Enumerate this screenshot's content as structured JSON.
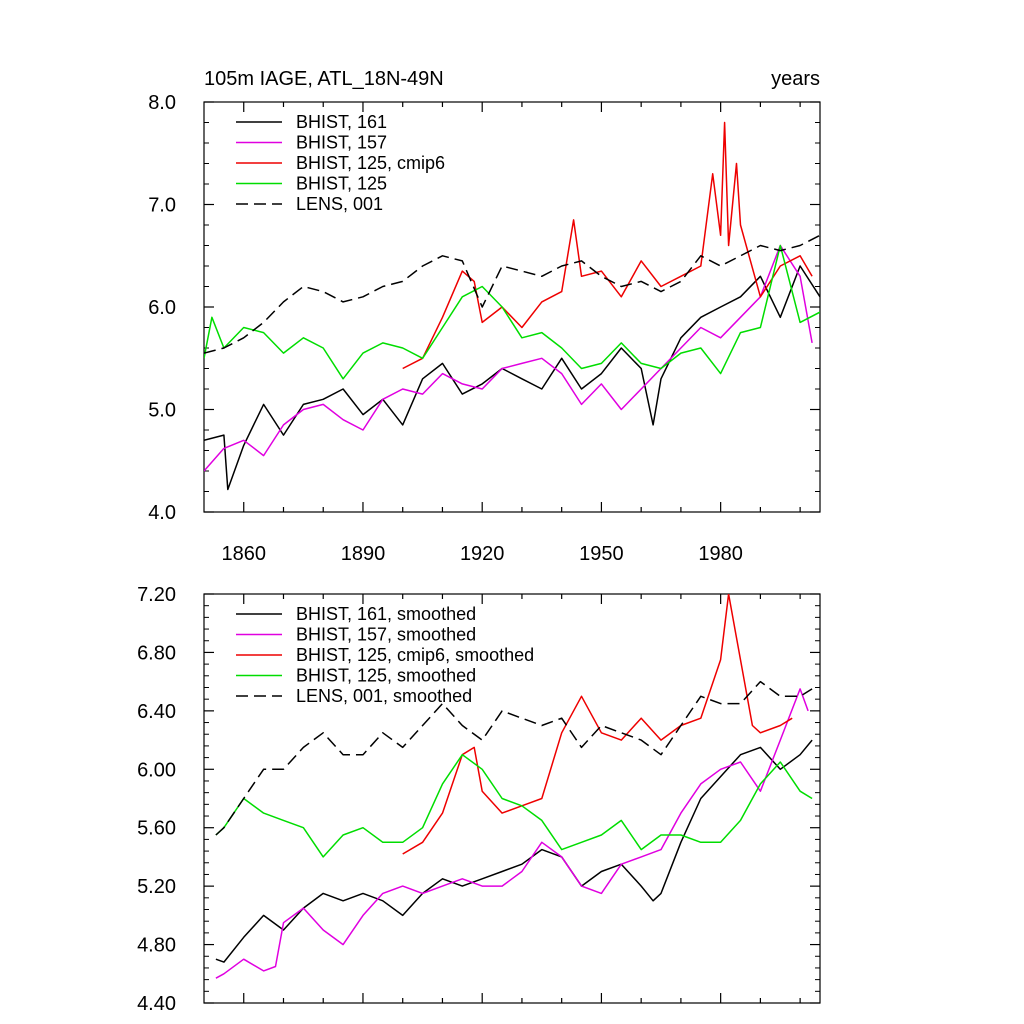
{
  "chart_data": [
    {
      "type": "line",
      "title": "105m IAGE, ATL_18N-49N",
      "units": "years",
      "xlim": [
        1850,
        2005
      ],
      "ylim": [
        4.0,
        8.0
      ],
      "yticks": [
        "4.0",
        "5.0",
        "6.0",
        "7.0",
        "8.0"
      ],
      "xticks": [
        "1860",
        "1890",
        "1920",
        "1950",
        "1980"
      ],
      "legend_position": "top-left",
      "series": [
        {
          "name": "BHIST, 161",
          "color": "#000000",
          "dash": "solid",
          "x": [
            1850,
            1855,
            1856,
            1860,
            1865,
            1870,
            1875,
            1880,
            1885,
            1890,
            1895,
            1900,
            1905,
            1910,
            1915,
            1920,
            1925,
            1930,
            1935,
            1940,
            1945,
            1950,
            1955,
            1960,
            1963,
            1965,
            1970,
            1975,
            1980,
            1985,
            1990,
            1995,
            2000,
            2005
          ],
          "y": [
            4.7,
            4.75,
            4.22,
            4.65,
            5.05,
            4.75,
            5.05,
            5.1,
            5.2,
            4.95,
            5.1,
            4.85,
            5.3,
            5.45,
            5.15,
            5.25,
            5.4,
            5.3,
            5.2,
            5.5,
            5.2,
            5.35,
            5.6,
            5.4,
            4.85,
            5.3,
            5.7,
            5.9,
            6.0,
            6.1,
            6.3,
            5.9,
            6.4,
            6.1
          ]
        },
        {
          "name": "BHIST, 157",
          "color": "#e000e0",
          "dash": "solid",
          "x": [
            1850,
            1855,
            1860,
            1865,
            1870,
            1875,
            1880,
            1885,
            1890,
            1895,
            1900,
            1905,
            1910,
            1915,
            1920,
            1925,
            1930,
            1935,
            1940,
            1945,
            1950,
            1955,
            1960,
            1965,
            1970,
            1975,
            1980,
            1985,
            1990,
            1995,
            2000,
            2003
          ],
          "y": [
            4.4,
            4.62,
            4.7,
            4.55,
            4.85,
            5.0,
            5.05,
            4.9,
            4.8,
            5.1,
            5.2,
            5.15,
            5.35,
            5.25,
            5.2,
            5.4,
            5.45,
            5.5,
            5.35,
            5.05,
            5.25,
            5.0,
            5.2,
            5.4,
            5.6,
            5.8,
            5.7,
            5.9,
            6.1,
            6.6,
            6.3,
            5.65
          ]
        },
        {
          "name": "BHIST, 125, cmip6",
          "color": "#ee0000",
          "dash": "solid",
          "x": [
            1900,
            1905,
            1910,
            1915,
            1918,
            1920,
            1925,
            1930,
            1935,
            1940,
            1943,
            1945,
            1950,
            1955,
            1960,
            1965,
            1970,
            1975,
            1978,
            1980,
            1981,
            1982,
            1984,
            1985,
            1990,
            1995,
            2000,
            2003
          ],
          "y": [
            5.4,
            5.5,
            5.9,
            6.35,
            6.25,
            5.85,
            6.0,
            5.8,
            6.05,
            6.15,
            6.85,
            6.3,
            6.35,
            6.1,
            6.45,
            6.2,
            6.3,
            6.4,
            7.3,
            6.7,
            7.8,
            6.6,
            7.4,
            6.8,
            6.1,
            6.4,
            6.5,
            6.3
          ]
        },
        {
          "name": "BHIST, 125",
          "color": "#00dd00",
          "dash": "solid",
          "x": [
            1850,
            1852,
            1855,
            1860,
            1865,
            1870,
            1875,
            1880,
            1885,
            1890,
            1895,
            1900,
            1905,
            1910,
            1915,
            1920,
            1925,
            1930,
            1935,
            1940,
            1945,
            1950,
            1955,
            1960,
            1965,
            1970,
            1975,
            1980,
            1985,
            1990,
            1995,
            2000,
            2005
          ],
          "y": [
            5.5,
            5.9,
            5.6,
            5.8,
            5.75,
            5.55,
            5.7,
            5.6,
            5.3,
            5.55,
            5.65,
            5.6,
            5.5,
            5.8,
            6.1,
            6.2,
            6.0,
            5.7,
            5.75,
            5.6,
            5.4,
            5.45,
            5.65,
            5.45,
            5.4,
            5.55,
            5.6,
            5.35,
            5.75,
            5.8,
            6.6,
            5.85,
            5.95
          ]
        },
        {
          "name": "LENS, 001",
          "color": "#000000",
          "dash": "dashed",
          "x": [
            1850,
            1855,
            1860,
            1865,
            1870,
            1875,
            1880,
            1885,
            1890,
            1895,
            1900,
            1905,
            1910,
            1915,
            1920,
            1925,
            1930,
            1935,
            1940,
            1945,
            1950,
            1955,
            1960,
            1965,
            1970,
            1975,
            1980,
            1985,
            1990,
            1995,
            2000,
            2005
          ],
          "y": [
            5.55,
            5.6,
            5.7,
            5.85,
            6.05,
            6.2,
            6.15,
            6.05,
            6.1,
            6.2,
            6.25,
            6.4,
            6.5,
            6.45,
            6.0,
            6.4,
            6.35,
            6.3,
            6.4,
            6.45,
            6.3,
            6.2,
            6.25,
            6.15,
            6.25,
            6.5,
            6.4,
            6.5,
            6.6,
            6.55,
            6.6,
            6.7
          ]
        }
      ]
    },
    {
      "type": "line",
      "title": "",
      "xlim": [
        1850,
        2005
      ],
      "ylim": [
        4.4,
        7.2
      ],
      "yticks": [
        "4.40",
        "4.80",
        "5.20",
        "5.60",
        "6.00",
        "6.40",
        "6.80",
        "7.20"
      ],
      "xticks": [],
      "legend_position": "top-left",
      "series": [
        {
          "name": "BHIST, 161, smoothed",
          "color": "#000000",
          "dash": "solid",
          "x": [
            1853,
            1855,
            1860,
            1865,
            1870,
            1875,
            1880,
            1885,
            1890,
            1895,
            1900,
            1905,
            1910,
            1915,
            1920,
            1925,
            1930,
            1935,
            1940,
            1945,
            1950,
            1955,
            1960,
            1963,
            1965,
            1970,
            1975,
            1980,
            1985,
            1990,
            1995,
            2000,
            2003
          ],
          "y": [
            4.7,
            4.68,
            4.85,
            5.0,
            4.9,
            5.05,
            5.15,
            5.1,
            5.15,
            5.1,
            5.0,
            5.15,
            5.25,
            5.2,
            5.25,
            5.3,
            5.35,
            5.45,
            5.4,
            5.2,
            5.3,
            5.35,
            5.2,
            5.1,
            5.15,
            5.5,
            5.8,
            5.95,
            6.1,
            6.15,
            6.0,
            6.1,
            6.2
          ]
        },
        {
          "name": "BHIST, 157, smoothed",
          "color": "#e000e0",
          "dash": "solid",
          "x": [
            1853,
            1855,
            1860,
            1865,
            1868,
            1870,
            1875,
            1880,
            1885,
            1890,
            1895,
            1900,
            1905,
            1910,
            1915,
            1920,
            1925,
            1930,
            1935,
            1940,
            1945,
            1950,
            1955,
            1960,
            1965,
            1970,
            1975,
            1980,
            1985,
            1990,
            1995,
            2000,
            2002
          ],
          "y": [
            4.57,
            4.6,
            4.7,
            4.62,
            4.65,
            4.95,
            5.05,
            4.9,
            4.8,
            5.0,
            5.15,
            5.2,
            5.15,
            5.2,
            5.25,
            5.2,
            5.2,
            5.3,
            5.5,
            5.4,
            5.2,
            5.15,
            5.35,
            5.4,
            5.45,
            5.7,
            5.9,
            6.0,
            6.05,
            5.85,
            6.2,
            6.55,
            6.4
          ]
        },
        {
          "name": "BHIST, 125, cmip6, smoothed",
          "color": "#ee0000",
          "dash": "solid",
          "x": [
            1900,
            1905,
            1910,
            1915,
            1918,
            1920,
            1925,
            1930,
            1935,
            1940,
            1945,
            1950,
            1955,
            1960,
            1965,
            1970,
            1975,
            1980,
            1982,
            1984,
            1988,
            1990,
            1995,
            1998
          ],
          "y": [
            5.42,
            5.5,
            5.7,
            6.1,
            6.15,
            5.85,
            5.7,
            5.75,
            5.8,
            6.25,
            6.5,
            6.25,
            6.2,
            6.35,
            6.2,
            6.3,
            6.35,
            6.75,
            7.2,
            6.9,
            6.3,
            6.25,
            6.3,
            6.35
          ]
        },
        {
          "name": "BHIST, 125, smoothed",
          "color": "#00dd00",
          "dash": "solid",
          "x": [
            1853,
            1855,
            1860,
            1865,
            1870,
            1875,
            1880,
            1885,
            1890,
            1895,
            1900,
            1905,
            1910,
            1915,
            1920,
            1925,
            1930,
            1935,
            1940,
            1945,
            1950,
            1955,
            1960,
            1965,
            1970,
            1975,
            1980,
            1985,
            1990,
            1995,
            2000,
            2003
          ],
          "y": [
            5.55,
            5.6,
            5.8,
            5.7,
            5.65,
            5.6,
            5.4,
            5.55,
            5.6,
            5.5,
            5.5,
            5.6,
            5.9,
            6.1,
            6.0,
            5.8,
            5.75,
            5.65,
            5.45,
            5.5,
            5.55,
            5.65,
            5.45,
            5.55,
            5.55,
            5.5,
            5.5,
            5.65,
            5.9,
            6.05,
            5.85,
            5.8
          ]
        },
        {
          "name": "LENS, 001, smoothed",
          "color": "#000000",
          "dash": "dashed",
          "x": [
            1853,
            1855,
            1860,
            1865,
            1870,
            1875,
            1880,
            1885,
            1890,
            1895,
            1900,
            1905,
            1910,
            1915,
            1920,
            1925,
            1930,
            1935,
            1940,
            1945,
            1950,
            1955,
            1960,
            1965,
            1970,
            1975,
            1980,
            1985,
            1990,
            1995,
            2000,
            2003
          ],
          "y": [
            5.55,
            5.6,
            5.8,
            6.0,
            6.0,
            6.15,
            6.25,
            6.1,
            6.1,
            6.25,
            6.15,
            6.3,
            6.45,
            6.3,
            6.2,
            6.4,
            6.35,
            6.3,
            6.35,
            6.15,
            6.3,
            6.25,
            6.2,
            6.1,
            6.3,
            6.5,
            6.45,
            6.45,
            6.6,
            6.5,
            6.5,
            6.55
          ]
        }
      ]
    }
  ]
}
